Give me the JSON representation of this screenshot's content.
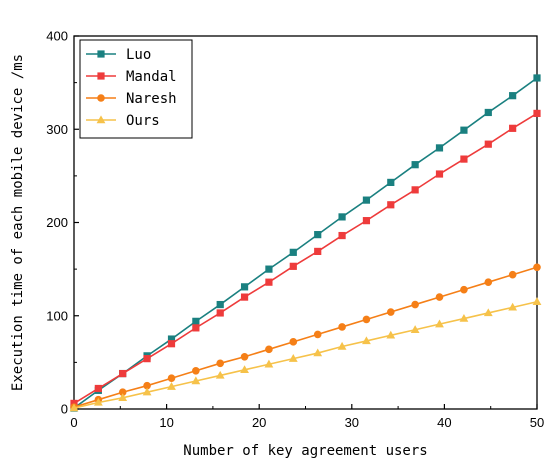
{
  "chart_data": {
    "type": "line",
    "title": "",
    "xlabel": "Number of key agreement users",
    "ylabel": "Execution time of each mobile device /ms",
    "xlim": [
      0,
      50
    ],
    "ylim": [
      0,
      400
    ],
    "xticks": [
      0,
      10,
      20,
      30,
      40,
      50
    ],
    "yticks": [
      0,
      100,
      200,
      300,
      400
    ],
    "grid": false,
    "legend_position": "top-left",
    "x": [
      0,
      2.63,
      5.26,
      7.89,
      10.53,
      13.16,
      15.79,
      18.42,
      21.05,
      23.68,
      26.32,
      28.95,
      31.58,
      34.21,
      36.84,
      39.47,
      42.11,
      44.74,
      47.37,
      50
    ],
    "series": [
      {
        "name": "Luo",
        "color": "#1a8080",
        "marker": "square",
        "values": [
          1,
          20,
          38,
          57,
          75,
          94,
          112,
          131,
          150,
          168,
          187,
          206,
          224,
          243,
          262,
          280,
          299,
          318,
          336,
          355
        ]
      },
      {
        "name": "Mandal",
        "color": "#ee3b3b",
        "marker": "square",
        "values": [
          6,
          22,
          38,
          54,
          70,
          87,
          103,
          120,
          136,
          153,
          169,
          186,
          202,
          219,
          235,
          252,
          268,
          284,
          301,
          317
        ]
      },
      {
        "name": "Naresh",
        "color": "#f57f17",
        "marker": "circle",
        "values": [
          2,
          10,
          18,
          25,
          33,
          41,
          49,
          56,
          64,
          72,
          80,
          88,
          96,
          104,
          112,
          120,
          128,
          136,
          144,
          152
        ]
      },
      {
        "name": "Ours",
        "color": "#f6c24a",
        "marker": "triangle",
        "values": [
          1,
          7,
          12,
          18,
          24,
          30,
          36,
          42,
          48,
          54,
          60,
          67,
          73,
          79,
          85,
          91,
          97,
          103,
          109,
          115
        ]
      }
    ]
  }
}
